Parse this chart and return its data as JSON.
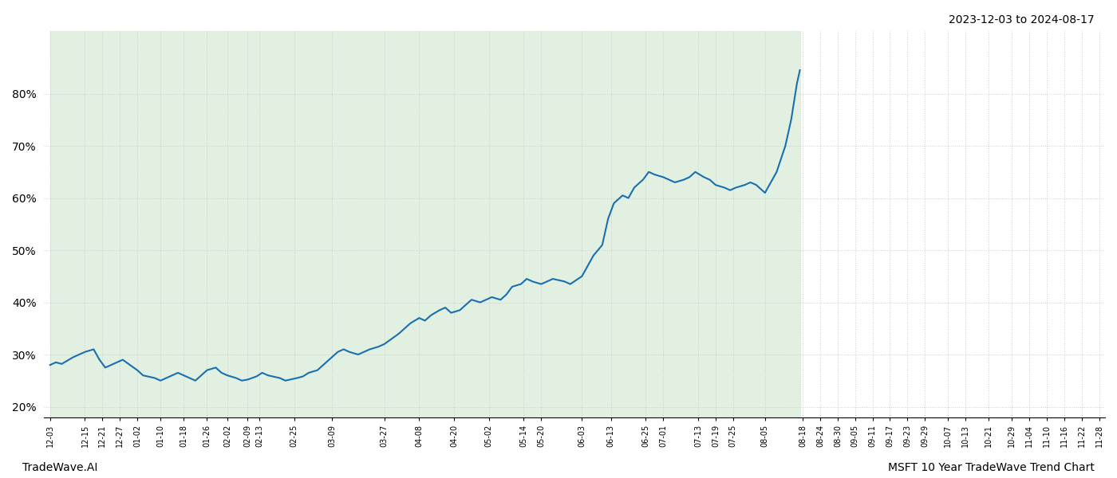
{
  "title_top_right": "2023-12-03 to 2024-08-17",
  "footer_left": "TradeWave.AI",
  "footer_right": "MSFT 10 Year TradeWave Trend Chart",
  "ylim": [
    18,
    92
  ],
  "yticks": [
    20,
    30,
    40,
    50,
    60,
    70,
    80
  ],
  "line_color": "#1a6faf",
  "line_width": 1.5,
  "bg_color": "#ffffff",
  "grid_color": "#cccccc",
  "shaded_region_color": "#d6ead6",
  "shaded_region_alpha": 0.7,
  "dates": [
    "2023-12-03",
    "2023-12-05",
    "2023-12-07",
    "2023-12-11",
    "2023-12-13",
    "2023-12-15",
    "2023-12-18",
    "2023-12-20",
    "2023-12-22",
    "2023-12-26",
    "2023-12-28",
    "2024-01-02",
    "2024-01-04",
    "2024-01-08",
    "2024-01-10",
    "2024-01-12",
    "2024-01-16",
    "2024-01-18",
    "2024-01-22",
    "2024-01-24",
    "2024-01-26",
    "2024-01-29",
    "2024-01-31",
    "2024-02-02",
    "2024-02-05",
    "2024-02-07",
    "2024-02-09",
    "2024-02-12",
    "2024-02-14",
    "2024-02-16",
    "2024-02-20",
    "2024-02-22",
    "2024-02-26",
    "2024-02-28",
    "2024-03-01",
    "2024-03-04",
    "2024-03-06",
    "2024-03-08",
    "2024-03-11",
    "2024-03-13",
    "2024-03-15",
    "2024-03-18",
    "2024-03-20",
    "2024-03-22",
    "2024-03-25",
    "2024-03-27",
    "2024-04-01",
    "2024-04-03",
    "2024-04-05",
    "2024-04-08",
    "2024-04-10",
    "2024-04-12",
    "2024-04-15",
    "2024-04-17",
    "2024-04-19",
    "2024-04-22",
    "2024-04-24",
    "2024-04-26",
    "2024-04-29",
    "2024-05-01",
    "2024-05-03",
    "2024-05-06",
    "2024-05-08",
    "2024-05-10",
    "2024-05-13",
    "2024-05-15",
    "2024-05-17",
    "2024-05-20",
    "2024-05-22",
    "2024-05-24",
    "2024-05-28",
    "2024-05-30",
    "2024-06-03",
    "2024-06-05",
    "2024-06-07",
    "2024-06-10",
    "2024-06-12",
    "2024-06-14",
    "2024-06-17",
    "2024-06-19",
    "2024-06-21",
    "2024-06-24",
    "2024-06-26",
    "2024-06-28",
    "2024-07-01",
    "2024-07-03",
    "2024-07-05",
    "2024-07-08",
    "2024-07-10",
    "2024-07-12",
    "2024-07-15",
    "2024-07-17",
    "2024-07-19",
    "2024-07-22",
    "2024-07-24",
    "2024-07-26",
    "2024-07-29",
    "2024-07-31",
    "2024-08-02",
    "2024-08-05",
    "2024-08-07",
    "2024-08-09",
    "2024-08-12",
    "2024-08-14",
    "2024-08-16",
    "2024-08-17"
  ],
  "values": [
    28.0,
    28.5,
    28.2,
    29.5,
    30.0,
    30.5,
    31.0,
    29.0,
    27.5,
    28.5,
    29.0,
    27.0,
    26.0,
    25.5,
    25.0,
    25.5,
    26.5,
    26.0,
    25.0,
    26.0,
    27.0,
    27.5,
    26.5,
    26.0,
    25.5,
    25.0,
    25.2,
    25.8,
    26.5,
    26.0,
    25.5,
    25.0,
    25.5,
    25.8,
    26.5,
    27.0,
    28.0,
    29.0,
    30.5,
    31.0,
    30.5,
    30.0,
    30.5,
    31.0,
    31.5,
    32.0,
    34.0,
    35.0,
    36.0,
    37.0,
    36.5,
    37.5,
    38.5,
    39.0,
    38.0,
    38.5,
    39.5,
    40.5,
    40.0,
    40.5,
    41.0,
    40.5,
    41.5,
    43.0,
    43.5,
    44.5,
    44.0,
    43.5,
    44.0,
    44.5,
    44.0,
    43.5,
    45.0,
    47.0,
    49.0,
    51.0,
    56.0,
    59.0,
    60.5,
    60.0,
    62.0,
    63.5,
    65.0,
    64.5,
    64.0,
    63.5,
    63.0,
    63.5,
    64.0,
    65.0,
    64.0,
    63.5,
    62.5,
    62.0,
    61.5,
    62.0,
    62.5,
    63.0,
    62.5,
    61.0,
    63.0,
    65.0,
    70.0,
    75.0,
    82.0,
    84.5
  ],
  "xtick_labels": [
    "12-03",
    "12-15",
    "12-21",
    "12-27",
    "01-02",
    "01-10",
    "01-18",
    "01-26",
    "02-02",
    "02-09",
    "02-13",
    "02-25",
    "03-09",
    "03-27",
    "04-08",
    "04-20",
    "05-02",
    "05-14",
    "05-20",
    "06-03",
    "06-13",
    "06-25",
    "07-01",
    "07-13",
    "07-19",
    "07-25",
    "08-05",
    "08-18",
    "08-24",
    "08-30",
    "09-05",
    "09-11",
    "09-17",
    "09-23",
    "09-29",
    "10-07",
    "10-13",
    "10-21",
    "10-29",
    "11-04",
    "11-10",
    "11-16",
    "11-22",
    "11-28"
  ]
}
